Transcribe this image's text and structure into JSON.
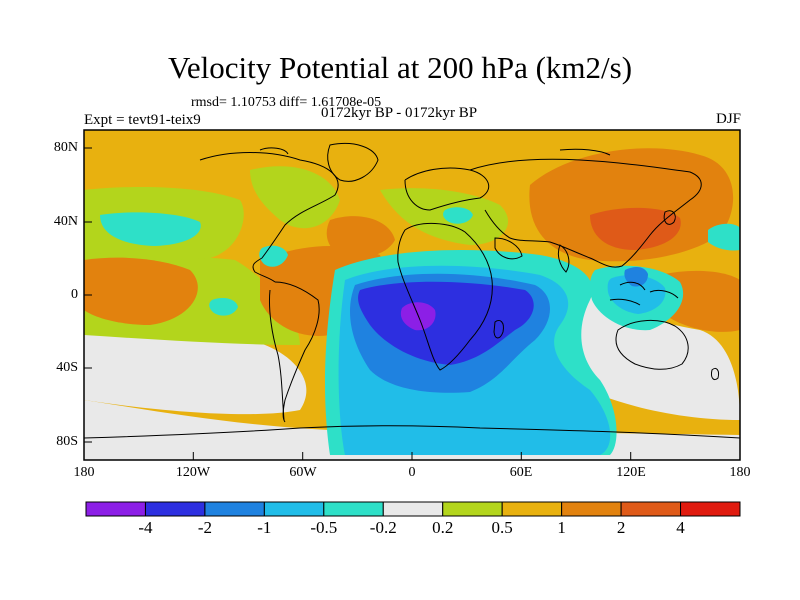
{
  "title": "Velocity Potential at 200 hPa (km2/s)",
  "stats": "rmsd= 1.10753  diff= 1.61708e-05",
  "experiment": "Expt = tevt91-teix9",
  "period": "0172kyr BP - 0172kyr BP",
  "season": "DJF",
  "x_ticks": [
    "180",
    "120W",
    "60W",
    "0",
    "60E",
    "120E",
    "180"
  ],
  "y_ticks": [
    "80N",
    "40N",
    "0",
    "40S",
    "80S"
  ],
  "colorbar": {
    "colors": [
      "#8c1fe6",
      "#2d2fe0",
      "#1f82e0",
      "#21bde8",
      "#2ee0c8",
      "#e9e9e9",
      "#b3d51c",
      "#e8b10f",
      "#e2820e",
      "#df5a18",
      "#e01b0f"
    ],
    "labels": [
      "-4",
      "-2",
      "-1",
      "-0.5",
      "-0.2",
      "0.2",
      "0.5",
      "1",
      "2",
      "4"
    ]
  },
  "field_levels": {
    "neg4": "#8c1fe6",
    "neg2": "#2d2fe0",
    "neg1": "#1f82e0",
    "neg05": "#21bde8",
    "neg02": "#2ee0c8",
    "zero": "#e9e9e9",
    "pos02": "#b3d51c",
    "pos05": "#e8b10f",
    "pos1": "#e2820e",
    "pos2": "#df5a18",
    "pos4": "#e01b0f"
  }
}
